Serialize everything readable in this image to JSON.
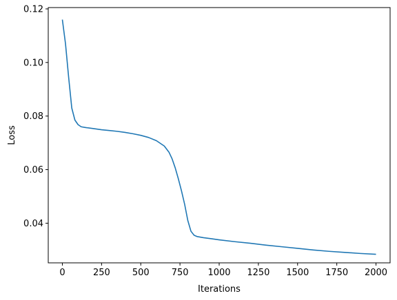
{
  "chart_data": {
    "type": "line",
    "title": "",
    "xlabel": "Iterations",
    "ylabel": "Loss",
    "xlim": [
      -90,
      2090
    ],
    "ylim": [
      0.0252,
      0.1205
    ],
    "xticks": [
      0,
      250,
      500,
      750,
      1000,
      1250,
      1500,
      1750,
      2000
    ],
    "xtick_labels": [
      "0",
      "250",
      "500",
      "750",
      "1000",
      "1250",
      "1500",
      "1750",
      "2000"
    ],
    "yticks": [
      0.04,
      0.06,
      0.08,
      0.1,
      0.12
    ],
    "ytick_labels": [
      "0.04",
      "0.06",
      "0.08",
      "0.10",
      "0.12"
    ],
    "grid": false,
    "series": [
      {
        "color": "#1f77b4",
        "x": [
          0,
          20,
          40,
          60,
          80,
          100,
          120,
          150,
          200,
          250,
          300,
          350,
          400,
          450,
          500,
          550,
          600,
          650,
          680,
          700,
          720,
          740,
          760,
          780,
          800,
          820,
          840,
          860,
          900,
          950,
          1000,
          1100,
          1200,
          1300,
          1400,
          1500,
          1600,
          1700,
          1800,
          1900,
          2000
        ],
        "y": [
          0.116,
          0.107,
          0.0945,
          0.083,
          0.0785,
          0.0768,
          0.076,
          0.0757,
          0.0753,
          0.0749,
          0.0746,
          0.0743,
          0.0739,
          0.0734,
          0.0728,
          0.072,
          0.0708,
          0.0688,
          0.0665,
          0.064,
          0.0606,
          0.0565,
          0.052,
          0.047,
          0.041,
          0.037,
          0.0355,
          0.035,
          0.0346,
          0.0342,
          0.0338,
          0.0331,
          0.0325,
          0.0318,
          0.0312,
          0.0306,
          0.03,
          0.0295,
          0.0291,
          0.0287,
          0.0284
        ]
      }
    ]
  }
}
